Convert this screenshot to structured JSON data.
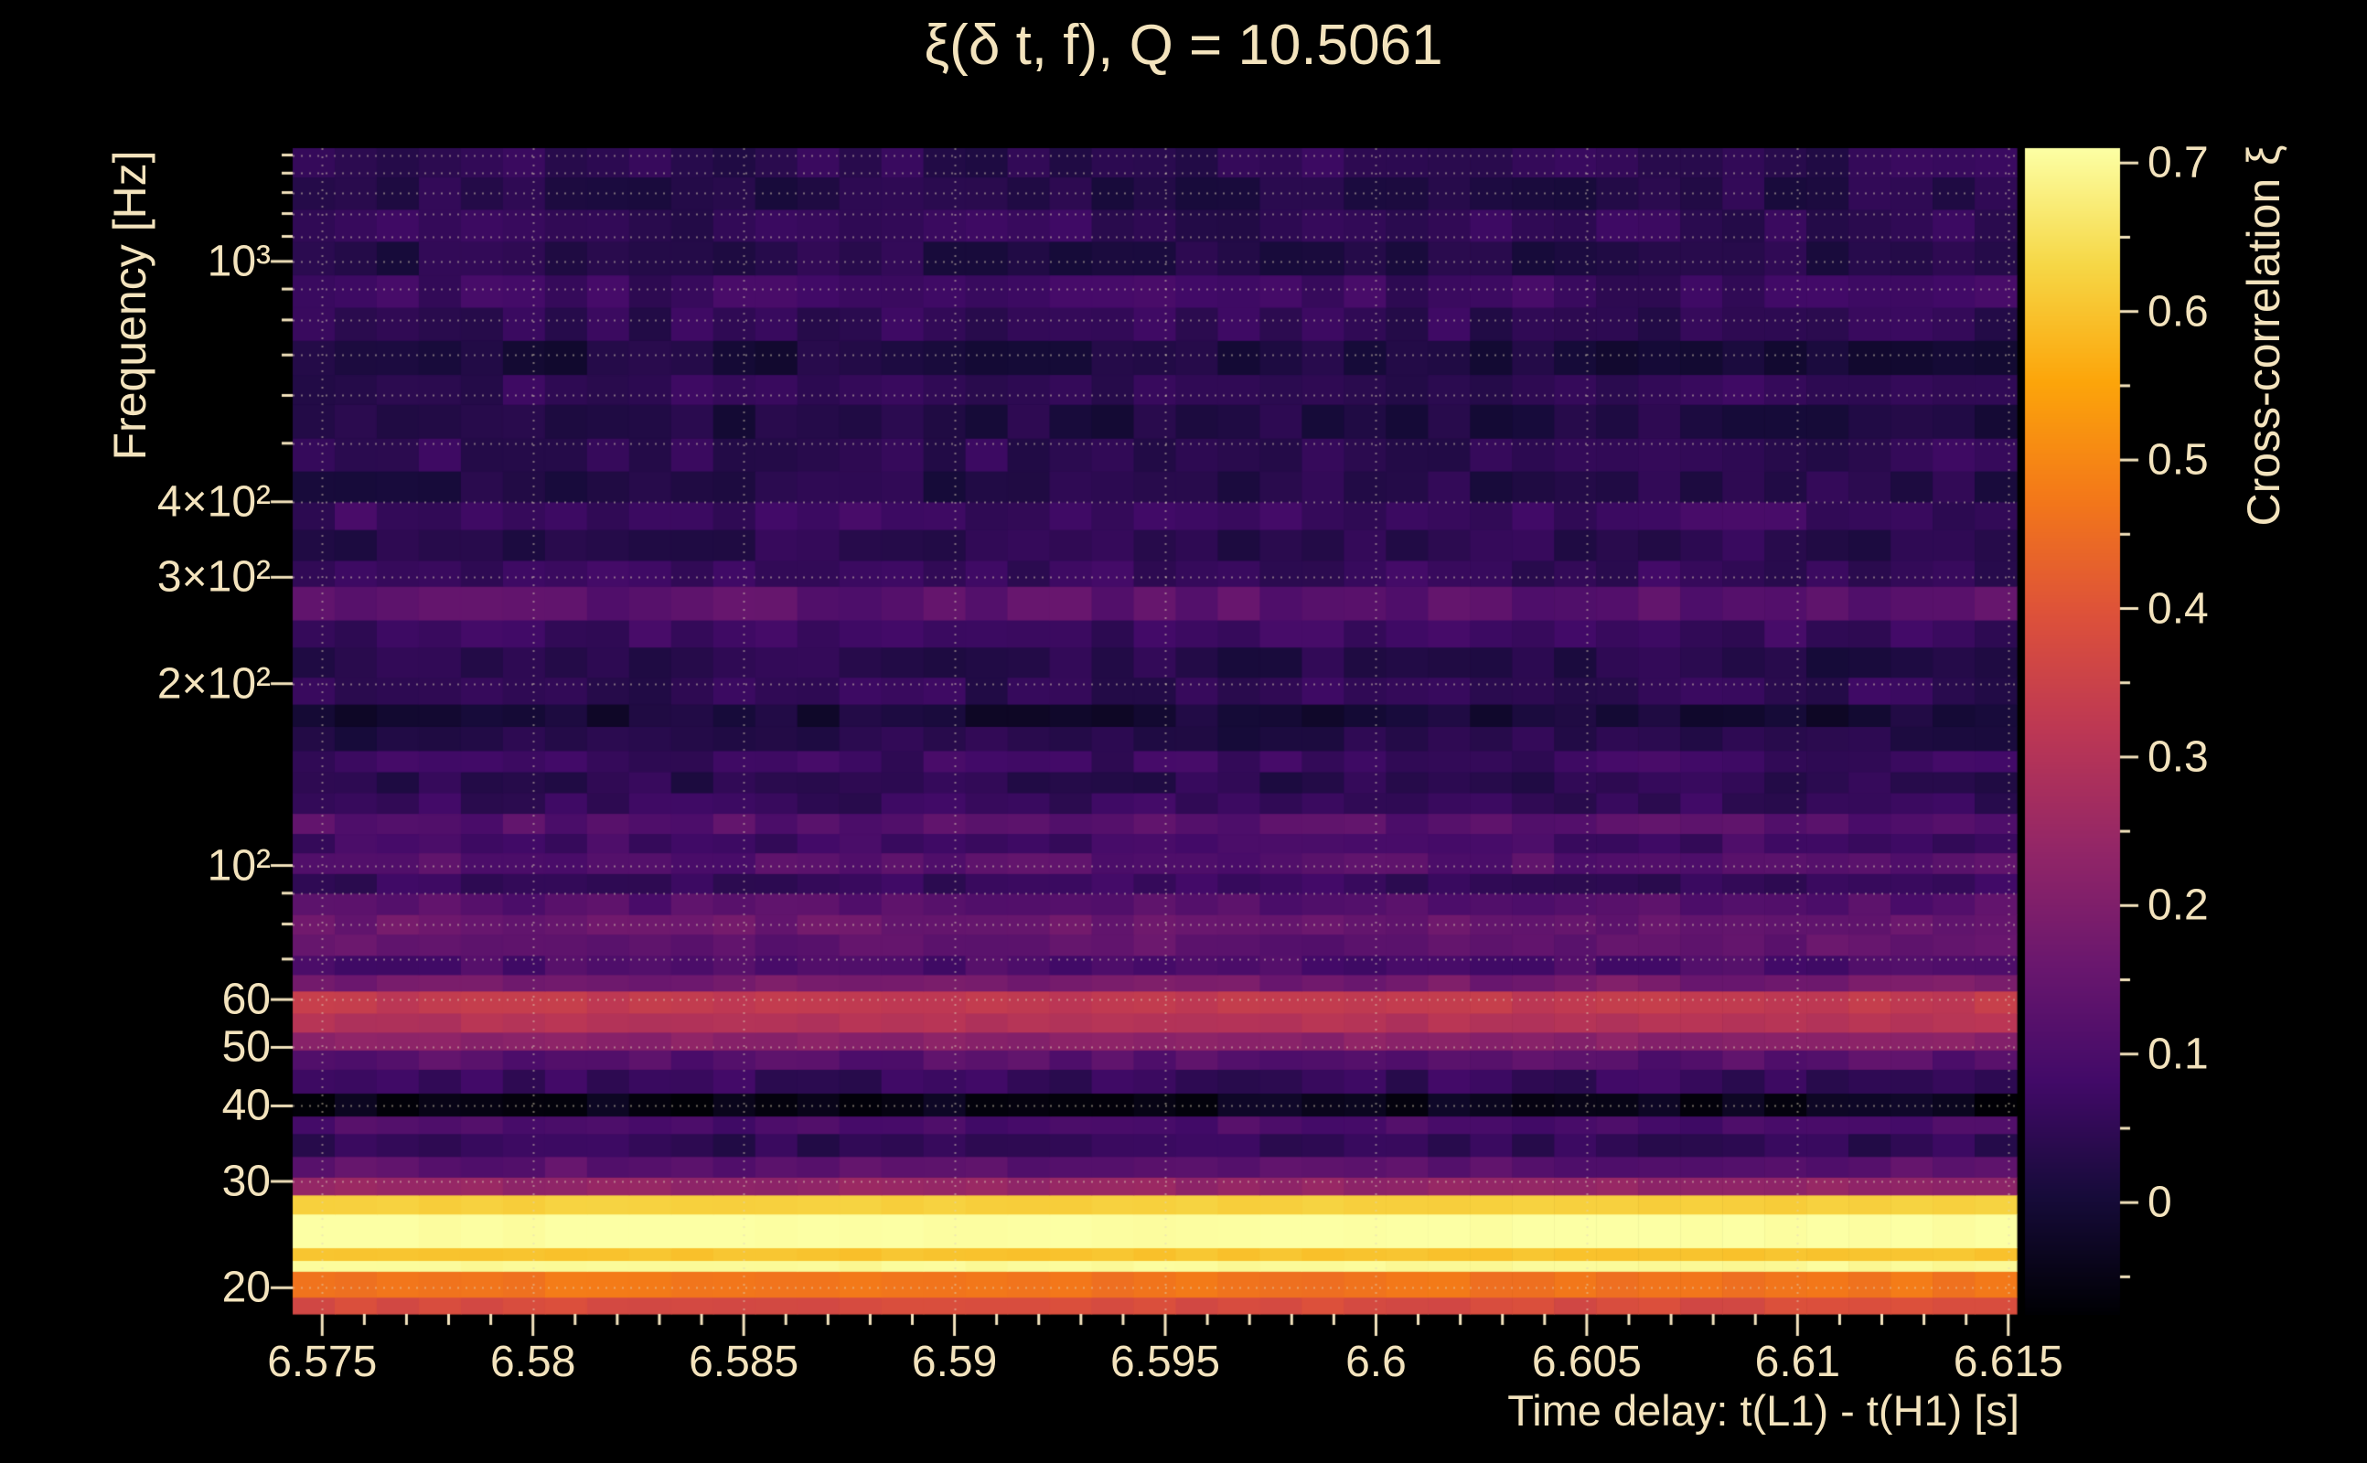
{
  "chart_data": {
    "type": "heatmap",
    "title": "ξ(δ t, f), Q = 10.5061",
    "xlabel": "Time delay: t(L1) - t(H1) [s]",
    "ylabel": "Frequency [Hz]",
    "colorbar_label": "Cross-correlation ξ",
    "background": "#000000",
    "text_color": "#f3e3bd",
    "grid": true,
    "x_range": [
      6.5743,
      6.6152
    ],
    "x_major_ticks": [
      {
        "v": 6.575,
        "label": "6.575"
      },
      {
        "v": 6.58,
        "label": "6.58"
      },
      {
        "v": 6.585,
        "label": "6.585"
      },
      {
        "v": 6.59,
        "label": "6.59"
      },
      {
        "v": 6.595,
        "label": "6.595"
      },
      {
        "v": 6.6,
        "label": "6.6"
      },
      {
        "v": 6.605,
        "label": "6.605"
      },
      {
        "v": 6.61,
        "label": "6.61"
      },
      {
        "v": 6.615,
        "label": "6.615"
      }
    ],
    "x_minor_step": 0.001,
    "y_scale": "log",
    "y_log_range": [
      18.1,
      1540
    ],
    "y_major_ticks": [
      {
        "v": 20,
        "label": "20"
      },
      {
        "v": 30,
        "label": "30"
      },
      {
        "v": 40,
        "label": "40"
      },
      {
        "v": 50,
        "label": "50"
      },
      {
        "v": 60,
        "label": "60"
      },
      {
        "v": 100,
        "label": "10²"
      },
      {
        "v": 200,
        "label": "2×10²"
      },
      {
        "v": 300,
        "label": "3×10²"
      },
      {
        "v": 400,
        "label": "4×10²"
      },
      {
        "v": 1000,
        "label": "10³"
      }
    ],
    "y_grid_ticks": [
      20,
      30,
      40,
      50,
      60,
      70,
      80,
      90,
      100,
      200,
      300,
      400,
      500,
      600,
      700,
      800,
      900,
      1000,
      1100,
      1200,
      1300,
      1400,
      1500
    ],
    "colorbar": {
      "vmin": -0.075,
      "vmax": 0.71,
      "ticks": [
        {
          "v": 0.0,
          "label": "0"
        },
        {
          "v": 0.1,
          "label": "0.1"
        },
        {
          "v": 0.2,
          "label": "0.2"
        },
        {
          "v": 0.3,
          "label": "0.3"
        },
        {
          "v": 0.4,
          "label": "0.4"
        },
        {
          "v": 0.5,
          "label": "0.5"
        },
        {
          "v": 0.6,
          "label": "0.6"
        },
        {
          "v": 0.7,
          "label": "0.7"
        }
      ]
    },
    "colormap_name": "inferno",
    "colormap": [
      {
        "t": 0.0,
        "rgb": [
          0,
          0,
          4
        ]
      },
      {
        "t": 0.1,
        "rgb": [
          22,
          11,
          57
        ]
      },
      {
        "t": 0.2,
        "rgb": [
          66,
          10,
          104
        ]
      },
      {
        "t": 0.3,
        "rgb": [
          106,
          23,
          110
        ]
      },
      {
        "t": 0.4,
        "rgb": [
          147,
          38,
          103
        ]
      },
      {
        "t": 0.5,
        "rgb": [
          188,
          55,
          84
        ]
      },
      {
        "t": 0.6,
        "rgb": [
          221,
          81,
          58
        ]
      },
      {
        "t": 0.7,
        "rgb": [
          243,
          120,
          25
        ]
      },
      {
        "t": 0.8,
        "rgb": [
          252,
          165,
          10
        ]
      },
      {
        "t": 0.9,
        "rgb": [
          246,
          215,
          70
        ]
      },
      {
        "t": 1.0,
        "rgb": [
          252,
          255,
          164
        ]
      }
    ],
    "n_time_bins": 41,
    "bands_format": [
      "f_low_hz",
      "f_high_hz",
      "xi"
    ],
    "bands": [
      [
        18.0,
        19.3,
        0.38
      ],
      [
        19.3,
        21.3,
        0.47
      ],
      [
        21.3,
        22.2,
        0.7
      ],
      [
        22.2,
        23.3,
        0.6
      ],
      [
        23.3,
        26.5,
        0.71
      ],
      [
        26.5,
        28.5,
        0.62
      ],
      [
        28.5,
        30.5,
        0.24
      ],
      [
        30.5,
        33.0,
        0.13
      ],
      [
        33.0,
        36.0,
        0.05
      ],
      [
        36.0,
        38.5,
        0.1
      ],
      [
        38.5,
        42.0,
        -0.045
      ],
      [
        42.0,
        46.0,
        0.06
      ],
      [
        46.0,
        49.5,
        0.12
      ],
      [
        49.5,
        53.0,
        0.22
      ],
      [
        53.0,
        57.0,
        0.3
      ],
      [
        57.0,
        62.0,
        0.33
      ],
      [
        62.0,
        66.0,
        0.18
      ],
      [
        66.0,
        71.0,
        0.1
      ],
      [
        71.0,
        77.0,
        0.14
      ],
      [
        77.0,
        83.0,
        0.16
      ],
      [
        83.0,
        90.0,
        0.12
      ],
      [
        90.0,
        97.0,
        0.06
      ],
      [
        97.0,
        105.0,
        0.12
      ],
      [
        105.0,
        113.0,
        0.08
      ],
      [
        113.0,
        122.0,
        0.12
      ],
      [
        122.0,
        132.0,
        0.06
      ],
      [
        132.0,
        143.0,
        0.04
      ],
      [
        143.0,
        155.0,
        0.07
      ],
      [
        155.0,
        170.0,
        0.03
      ],
      [
        170.0,
        185.0,
        0.0
      ],
      [
        185.0,
        205.0,
        0.05
      ],
      [
        205.0,
        230.0,
        0.03
      ],
      [
        230.0,
        255.0,
        0.07
      ],
      [
        255.0,
        290.0,
        0.13
      ],
      [
        290.0,
        320.0,
        0.06
      ],
      [
        320.0,
        360.0,
        0.04
      ],
      [
        360.0,
        400.0,
        0.07
      ],
      [
        400.0,
        450.0,
        0.03
      ],
      [
        450.0,
        510.0,
        0.05
      ],
      [
        510.0,
        580.0,
        0.02
      ],
      [
        580.0,
        650.0,
        0.05
      ],
      [
        650.0,
        740.0,
        0.01
      ],
      [
        740.0,
        840.0,
        0.05
      ],
      [
        840.0,
        950.0,
        0.07
      ],
      [
        950.0,
        1080.0,
        0.03
      ],
      [
        1080.0,
        1220.0,
        0.05
      ],
      [
        1220.0,
        1380.0,
        0.03
      ],
      [
        1380.0,
        1545.0,
        0.045
      ]
    ]
  }
}
